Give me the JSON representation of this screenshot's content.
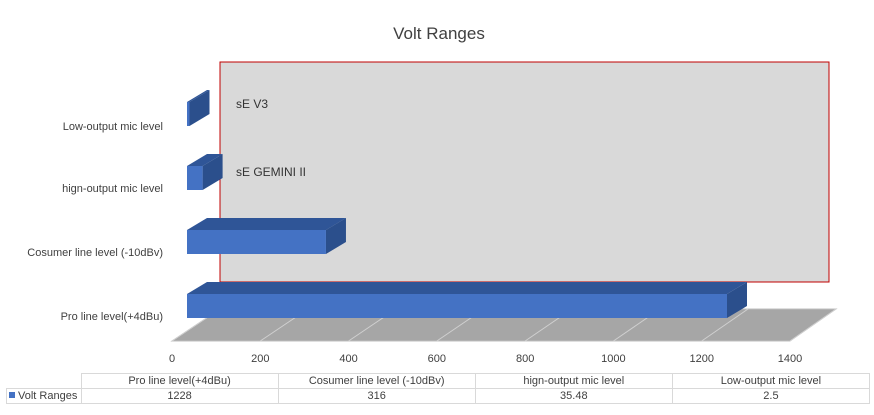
{
  "chart_data": {
    "type": "bar",
    "orientation": "horizontal",
    "three_d": true,
    "title": "Volt Ranges",
    "categories": [
      "Pro line level(+4dBu)",
      "Cosumer line level (-10dBv)",
      "hign-output mic level",
      "Low-output mic level"
    ],
    "series": [
      {
        "name": "Volt Ranges",
        "values": [
          1228,
          316,
          35.48,
          2.5
        ]
      }
    ],
    "xlim": [
      0,
      1400
    ],
    "xticks": [
      "0",
      "200",
      "400",
      "600",
      "800",
      "1000",
      "1200",
      "1400"
    ],
    "annotations": [
      {
        "text": "sE V3",
        "category": "Low-output mic level"
      },
      {
        "text": "sE GEMINI II",
        "category": "hign-output mic level"
      }
    ],
    "data_table": true,
    "legend": "in data table",
    "colors": {
      "bar_front": "#4472c4",
      "bar_top": "#2f5597",
      "bar_side": "#2b4f8c",
      "back_wall": "#d9d9d9",
      "floor": "#a6a6a6",
      "wall_border": "#c00000"
    }
  }
}
